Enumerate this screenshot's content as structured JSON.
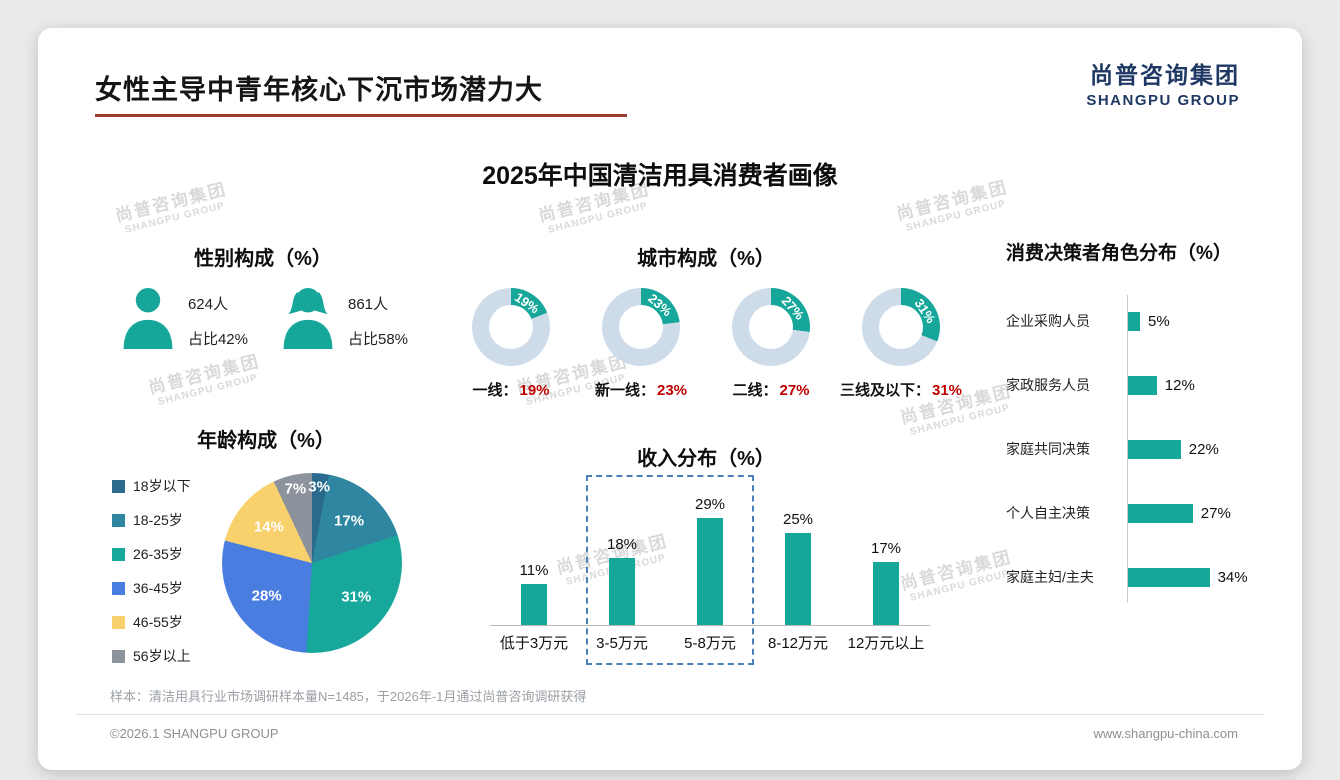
{
  "page": {
    "title": "女性主导中青年核心下沉市场潜力大",
    "subtitle": "2025年中国清洁用具消费者画像",
    "logo": {
      "cn": "尚普咨询集团",
      "en": "SHANGPU GROUP"
    },
    "watermark": {
      "cn": "尚普咨询集团",
      "en": "SHANGPU GROUP"
    },
    "footnote": "样本：清洁用具行业市场调研样本量N=1485，于2026年-1月通过尚普咨询调研获得",
    "footer": {
      "left": "©2026.1 SHANGPU GROUP",
      "right": "www.shangpu-china.com"
    }
  },
  "chart_data": [
    {
      "id": "gender",
      "type": "pictogram",
      "title": "性别构成（%）",
      "categories": [
        "男",
        "女"
      ],
      "series": [
        {
          "name": "人数",
          "values": [
            "624人",
            "861人"
          ]
        },
        {
          "name": "占比",
          "values": [
            "占比42%",
            "占比58%"
          ]
        }
      ],
      "icon_color": "#17A79A"
    },
    {
      "id": "city",
      "type": "pie",
      "subtype": "donut-multiples",
      "title": "城市构成（%）",
      "categories": [
        "一线",
        "新一线",
        "二线",
        "三线及以下"
      ],
      "values": [
        19,
        23,
        27,
        31
      ],
      "label_suffix": "：",
      "colors": {
        "filled": "#17A79A",
        "rest": "#CEDCE9"
      },
      "value_color": "#C00000"
    },
    {
      "id": "age",
      "type": "pie",
      "title": "年龄构成（%）",
      "categories": [
        "18岁以下",
        "18-25岁",
        "26-35岁",
        "36-45岁",
        "46-55岁",
        "56岁以上"
      ],
      "values": [
        3,
        17,
        31,
        28,
        14,
        7
      ],
      "colors": [
        "#2B6A8D",
        "#2E86A0",
        "#18A89B",
        "#4A7DE0",
        "#F8D16C",
        "#8D939C"
      ],
      "legend_position": "left"
    },
    {
      "id": "income",
      "type": "bar",
      "title": "收入分布（%）",
      "categories": [
        "低于3万元",
        "3-5万元",
        "5-8万元",
        "8-12万元",
        "12万元以上"
      ],
      "values": [
        11,
        18,
        29,
        25,
        17
      ],
      "bar_color": "#17A79A",
      "highlight": {
        "categories": [
          "3-5万元",
          "5-8万元"
        ],
        "style": "dashed-box",
        "color": "#4A7EB8"
      }
    },
    {
      "id": "decision",
      "type": "bar",
      "orientation": "horizontal",
      "title": "消费决策者角色分布（%）",
      "categories": [
        "企业采购人员",
        "家政服务人员",
        "家庭共同决策",
        "个人自主决策",
        "家庭主妇/主夫"
      ],
      "values": [
        5,
        12,
        22,
        27,
        34
      ],
      "bar_color": "#17A79A"
    }
  ]
}
